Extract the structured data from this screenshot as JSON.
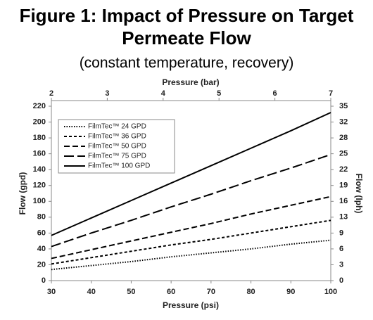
{
  "chart_data": {
    "type": "line",
    "title": "Figure 1: Impact of Pressure on Target Permeate Flow",
    "subtitle": "(constant temperature, recovery)",
    "x_label": "Pressure (psi)",
    "x2_label": "Pressure (bar)",
    "y_label": "Flow (gpd)",
    "y2_label": "Flow (lph)",
    "x": [
      30,
      40,
      50,
      60,
      70,
      80,
      90,
      100
    ],
    "xlim": [
      30,
      100
    ],
    "xticks": [
      30,
      40,
      50,
      60,
      70,
      80,
      90,
      100
    ],
    "x2lim": [
      2,
      7
    ],
    "x2ticks": [
      2,
      3,
      4,
      5,
      6,
      7
    ],
    "ylim": [
      0,
      220
    ],
    "yticks": [
      0,
      20,
      40,
      60,
      80,
      100,
      120,
      140,
      160,
      180,
      200,
      220
    ],
    "y2lim": [
      0,
      34.7
    ],
    "y2ticks": [
      0,
      {
        "value": 3.15,
        "label": "3"
      },
      {
        "value": 6.31,
        "label": "6"
      },
      {
        "value": 9.46,
        "label": "9"
      },
      {
        "value": 12.62,
        "label": "13"
      },
      {
        "value": 15.77,
        "label": "16"
      },
      {
        "value": 18.93,
        "label": "19"
      },
      {
        "value": 22.08,
        "label": "22"
      },
      {
        "value": 25.24,
        "label": "25"
      },
      {
        "value": 28.39,
        "label": "28"
      },
      {
        "value": 31.55,
        "label": "32"
      },
      {
        "value": 34.7,
        "label": "35"
      }
    ],
    "grid": false,
    "legend": "upper-left",
    "series": [
      {
        "name": "FilmTec™ 24 GPD",
        "color": "#000000",
        "line_style": "dotted",
        "values": [
          14,
          19,
          24,
          30,
          35,
          40,
          46,
          51
        ]
      },
      {
        "name": "FilmTec™ 36 GPD",
        "color": "#000000",
        "line_style": "short-dash",
        "values": [
          21,
          29,
          37,
          45,
          52,
          60,
          68,
          76
        ]
      },
      {
        "name": "FilmTec™ 50 GPD",
        "color": "#000000",
        "line_style": "dash",
        "values": [
          28,
          39,
          50,
          61,
          72,
          84,
          95,
          106
        ]
      },
      {
        "name": "FilmTec™ 75 GPD",
        "color": "#000000",
        "line_style": "long-dash",
        "values": [
          43,
          60,
          76,
          93,
          109,
          126,
          142,
          159
        ]
      },
      {
        "name": "FilmTec™ 100 GPD",
        "color": "#000000",
        "line_style": "solid",
        "values": [
          57,
          79,
          101,
          123,
          145,
          167,
          189,
          212
        ]
      }
    ]
  }
}
